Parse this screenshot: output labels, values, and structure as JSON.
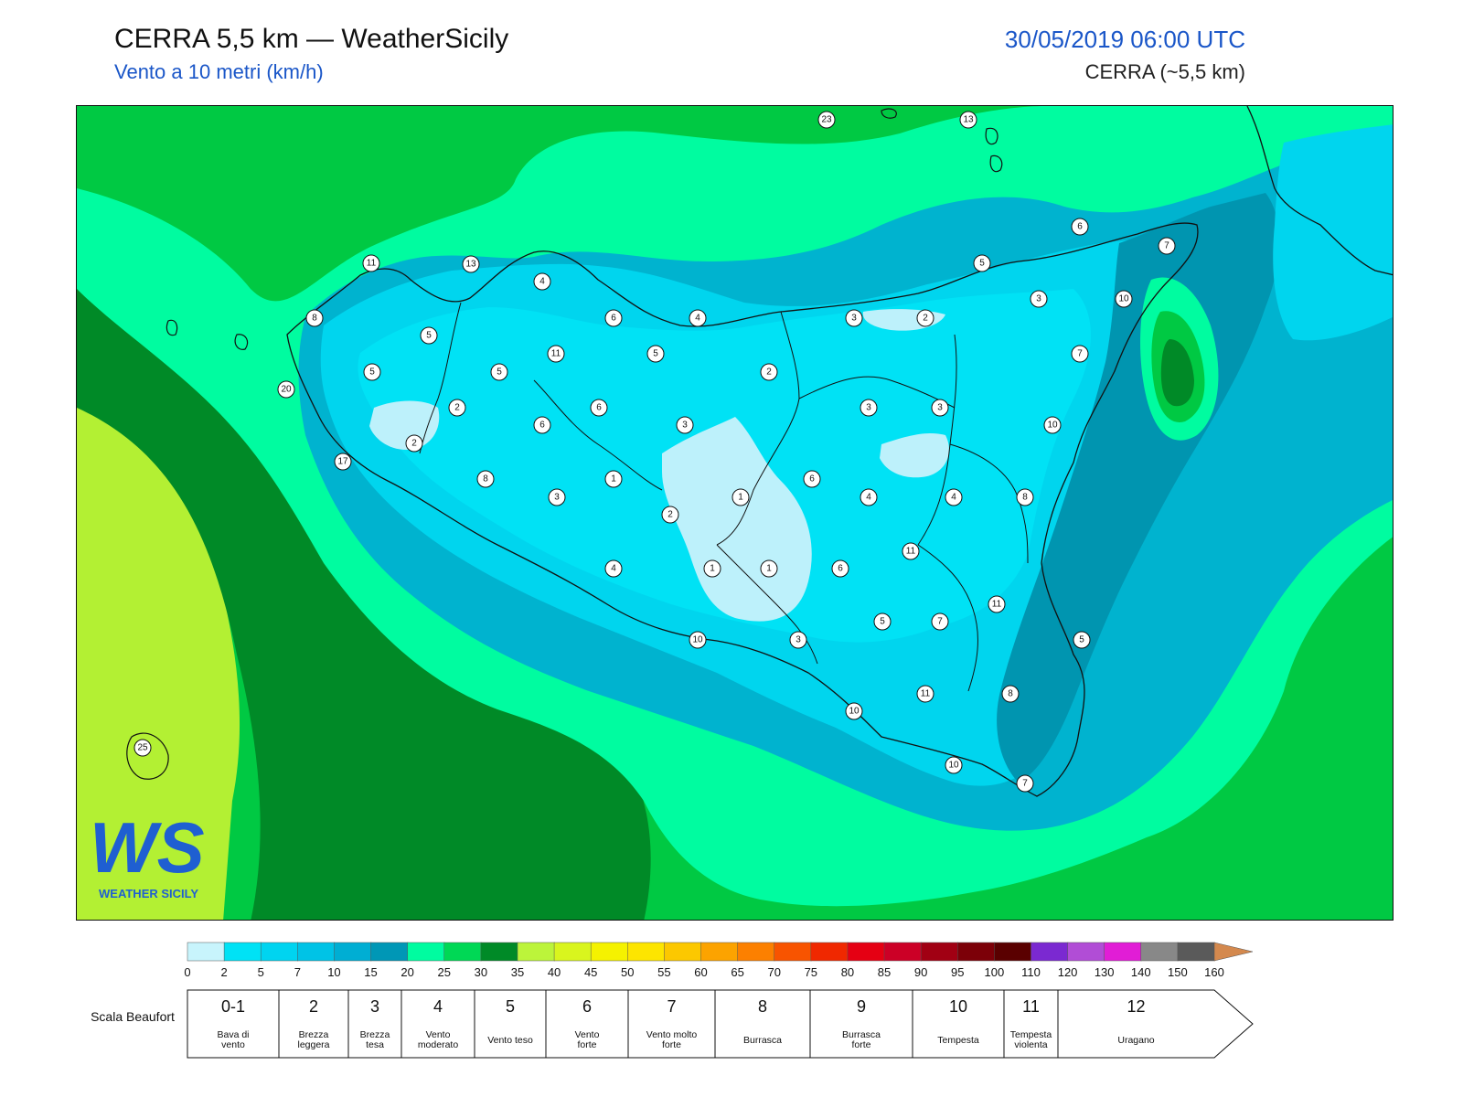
{
  "header": {
    "title": "CERRA 5,5 km — WeatherSicily",
    "subtitle": "Vento a 10 metri (km/h)",
    "datetime": "30/05/2019 06:00 UTC",
    "model": "CERRA (~5,5 km)"
  },
  "logo": {
    "letters": "WS",
    "name": "WEATHER SICILY"
  },
  "colors": {
    "land_light": "#bdf1fb",
    "land_cyan": "#00e2f5",
    "cyan2": "#00c9e8",
    "teal": "#0095b0",
    "sea_teal": "#00b3cf",
    "aqua_green": "#00fca0",
    "green": "#00c943",
    "dark_green": "#008a27",
    "lime": "#b3f033"
  },
  "stations": [
    {
      "id": "s1",
      "value": "23"
    },
    {
      "id": "s2",
      "value": "13"
    },
    {
      "id": "s3",
      "value": "6"
    },
    {
      "id": "s4",
      "value": "7"
    },
    {
      "id": "s5",
      "value": "11"
    },
    {
      "id": "s6",
      "value": "13"
    },
    {
      "id": "s7",
      "value": "4"
    },
    {
      "id": "s8",
      "value": "5"
    },
    {
      "id": "s9",
      "value": "3"
    },
    {
      "id": "s10",
      "value": "10"
    },
    {
      "id": "s11",
      "value": "8"
    },
    {
      "id": "s12",
      "value": "6"
    },
    {
      "id": "s13",
      "value": "4"
    },
    {
      "id": "s14",
      "value": "3"
    },
    {
      "id": "s15",
      "value": "2"
    },
    {
      "id": "s16",
      "value": "5"
    },
    {
      "id": "s17",
      "value": "11"
    },
    {
      "id": "s18",
      "value": "5"
    },
    {
      "id": "s19",
      "value": "7"
    },
    {
      "id": "s20",
      "value": "5"
    },
    {
      "id": "s21",
      "value": "5"
    },
    {
      "id": "s22",
      "value": "2"
    },
    {
      "id": "s23",
      "value": "20"
    },
    {
      "id": "s24",
      "value": "2"
    },
    {
      "id": "s25",
      "value": "6"
    },
    {
      "id": "s26",
      "value": "6"
    },
    {
      "id": "s27",
      "value": "3"
    },
    {
      "id": "s28",
      "value": "3"
    },
    {
      "id": "s29",
      "value": "3"
    },
    {
      "id": "s30",
      "value": "10"
    },
    {
      "id": "s31",
      "value": "2"
    },
    {
      "id": "s32",
      "value": "17"
    },
    {
      "id": "s33",
      "value": "8"
    },
    {
      "id": "s34",
      "value": "1"
    },
    {
      "id": "s35",
      "value": "6"
    },
    {
      "id": "s36",
      "value": "1"
    },
    {
      "id": "s37",
      "value": "4"
    },
    {
      "id": "s38",
      "value": "4"
    },
    {
      "id": "s39",
      "value": "8"
    },
    {
      "id": "s40",
      "value": "3"
    },
    {
      "id": "s41",
      "value": "2"
    },
    {
      "id": "s42",
      "value": "11"
    },
    {
      "id": "s43",
      "value": "4"
    },
    {
      "id": "s44",
      "value": "1"
    },
    {
      "id": "s45",
      "value": "1"
    },
    {
      "id": "s46",
      "value": "6"
    },
    {
      "id": "s47",
      "value": "11"
    },
    {
      "id": "s48",
      "value": "5"
    },
    {
      "id": "s49",
      "value": "7"
    },
    {
      "id": "s50",
      "value": "5"
    },
    {
      "id": "s51",
      "value": "10"
    },
    {
      "id": "s52",
      "value": "3"
    },
    {
      "id": "s53",
      "value": "11"
    },
    {
      "id": "s54",
      "value": "8"
    },
    {
      "id": "s55",
      "value": "10"
    },
    {
      "id": "s56",
      "value": "10"
    },
    {
      "id": "s57",
      "value": "7"
    },
    {
      "id": "s58",
      "value": "25"
    }
  ],
  "colorbar": {
    "caption_unit": "km/h",
    "ticks": [
      "0",
      "2",
      "5",
      "7",
      "10",
      "15",
      "20",
      "25",
      "30",
      "35",
      "40",
      "45",
      "50",
      "55",
      "60",
      "65",
      "70",
      "75",
      "80",
      "85",
      "90",
      "95",
      "100",
      "110",
      "120",
      "130",
      "140",
      "150",
      "160"
    ],
    "colors": [
      "#c8f4fc",
      "#00e2f5",
      "#00d4f0",
      "#00c3e6",
      "#00aed3",
      "#0097b6",
      "#00fca0",
      "#00d855",
      "#008a27",
      "#bcf43a",
      "#d9f51e",
      "#f5f200",
      "#fde500",
      "#fcc800",
      "#fca300",
      "#fc8000",
      "#f85400",
      "#f02800",
      "#e50013",
      "#cc0026",
      "#a10013",
      "#7c0008",
      "#5a0000",
      "#7b29d1",
      "#b14dd6",
      "#e11dd6",
      "#888888",
      "#5a5a5a",
      "#000000",
      "#8b4a26",
      "#d4894e"
    ]
  },
  "beaufort": {
    "caption": "Scala Beaufort",
    "levels": [
      {
        "num": "0-1",
        "name": "Bava di vento"
      },
      {
        "num": "2",
        "name": "Brezza leggera"
      },
      {
        "num": "3",
        "name": "Brezza tesa"
      },
      {
        "num": "4",
        "name": "Vento moderato"
      },
      {
        "num": "5",
        "name": "Vento teso"
      },
      {
        "num": "6",
        "name": "Vento forte"
      },
      {
        "num": "7",
        "name": "Vento molto forte"
      },
      {
        "num": "8",
        "name": "Burrasca"
      },
      {
        "num": "9",
        "name": "Burrasca forte"
      },
      {
        "num": "10",
        "name": "Tempesta"
      },
      {
        "num": "11",
        "name": "Tempesta violenta"
      },
      {
        "num": "12",
        "name": "Uragano"
      }
    ]
  }
}
